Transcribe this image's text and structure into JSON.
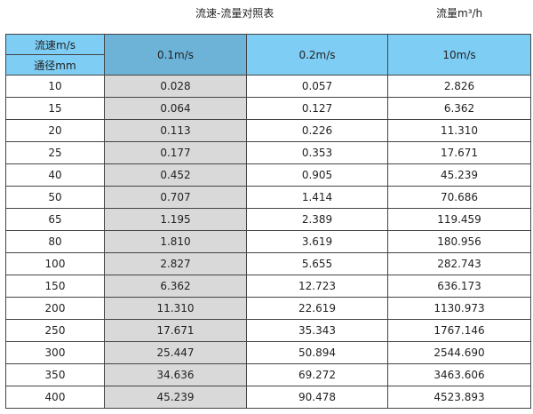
{
  "title": "流速-流量对照表",
  "unit_label": "流量m³/h",
  "header": {
    "velocity_label": "流速m/s",
    "diameter_label": "通径mm",
    "columns": [
      "0.1m/s",
      "0.2m/s",
      "10m/s"
    ]
  },
  "colors": {
    "header": "#7ecdf4",
    "highlight_header": "#6db3d8",
    "highlight_column": "#d9d9d9"
  },
  "rows": [
    [
      "10",
      "0.028",
      "0.057",
      "2.826"
    ],
    [
      "15",
      "0.064",
      "0.127",
      "6.362"
    ],
    [
      "20",
      "0.113",
      "0.226",
      "11.310"
    ],
    [
      "25",
      "0.177",
      "0.353",
      "17.671"
    ],
    [
      "40",
      "0.452",
      "0.905",
      "45.239"
    ],
    [
      "50",
      "0.707",
      "1.414",
      "70.686"
    ],
    [
      "65",
      "1.195",
      "2.389",
      "119.459"
    ],
    [
      "80",
      "1.810",
      "3.619",
      "180.956"
    ],
    [
      "100",
      "2.827",
      "5.655",
      "282.743"
    ],
    [
      "150",
      "6.362",
      "12.723",
      "636.173"
    ],
    [
      "200",
      "11.310",
      "22.619",
      "1130.973"
    ],
    [
      "250",
      "17.671",
      "35.343",
      "1767.146"
    ],
    [
      "300",
      "25.447",
      "50.894",
      "2544.690"
    ],
    [
      "350",
      "34.636",
      "69.272",
      "3463.606"
    ],
    [
      "400",
      "45.239",
      "90.478",
      "4523.893"
    ]
  ]
}
